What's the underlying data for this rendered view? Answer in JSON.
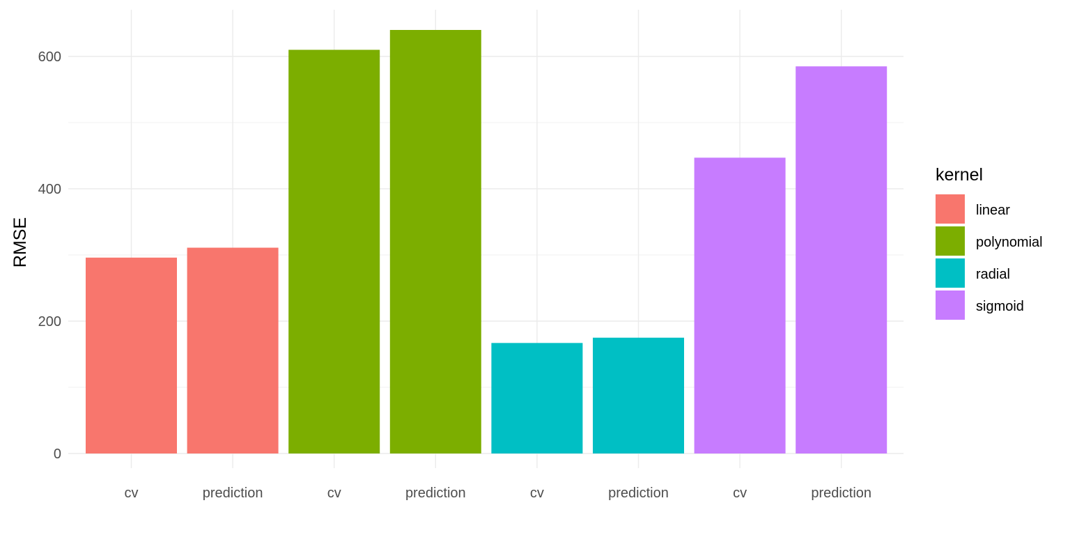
{
  "chart_data": {
    "type": "bar",
    "title": "",
    "xlabel": "",
    "ylabel": "RMSE",
    "ylim": [
      0,
      650
    ],
    "yticks": [
      0,
      200,
      400,
      600
    ],
    "categories": [
      "cv",
      "prediction",
      "cv",
      "prediction",
      "cv",
      "prediction",
      "cv",
      "prediction"
    ],
    "values": [
      296,
      311,
      610,
      640,
      167,
      175,
      447,
      585
    ],
    "fill_groups": [
      "linear",
      "linear",
      "polynomial",
      "polynomial",
      "radial",
      "radial",
      "sigmoid",
      "sigmoid"
    ],
    "grid": true,
    "legend": {
      "title": "kernel",
      "position": "right",
      "entries": [
        {
          "label": "linear",
          "color": "#F8766D"
        },
        {
          "label": "polynomial",
          "color": "#7CAE00"
        },
        {
          "label": "radial",
          "color": "#00BFC4"
        },
        {
          "label": "sigmoid",
          "color": "#C77CFF"
        }
      ]
    }
  }
}
